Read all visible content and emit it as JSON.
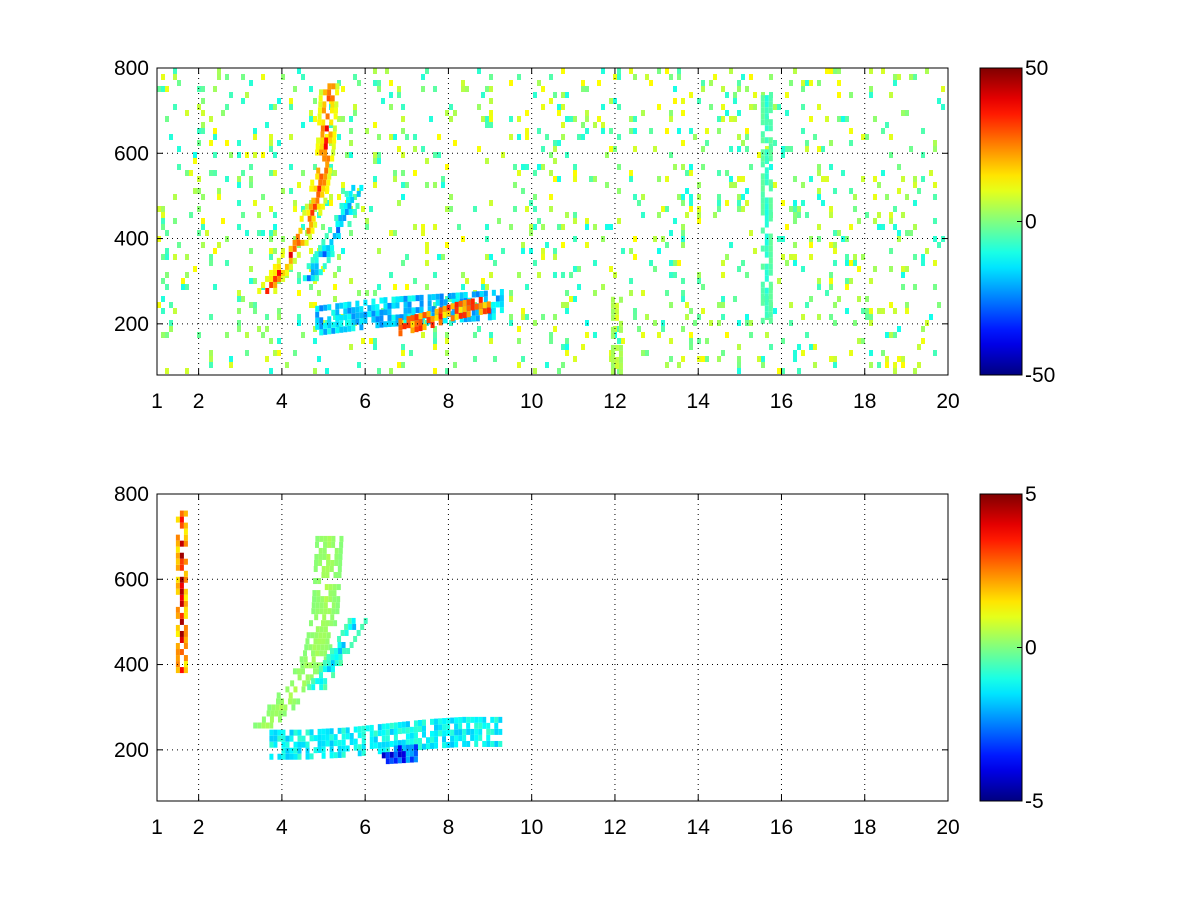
{
  "chart_data": [
    {
      "type": "heatmap",
      "title": "",
      "xlabel": "",
      "ylabel": "",
      "xlim": [
        1,
        20
      ],
      "ylim": [
        80,
        800
      ],
      "x_ticks": [
        1,
        2,
        4,
        6,
        8,
        10,
        12,
        14,
        16,
        18,
        20
      ],
      "y_ticks": [
        200,
        400,
        600,
        800
      ],
      "grid": true,
      "colormap": "jet",
      "colorbar": {
        "min": -50,
        "max": 50,
        "ticks": [
          50,
          0,
          -50
        ]
      },
      "features": [
        {
          "name": "rising ridge positive",
          "x": [
            3.6,
            4.0,
            4.4,
            4.8,
            5.0,
            5.1
          ],
          "y": [
            270,
            330,
            390,
            480,
            600,
            760
          ],
          "value": 40,
          "width_x": 0.22
        },
        {
          "name": "rising ridge negative",
          "x": [
            4.6,
            5.0,
            5.4,
            5.8
          ],
          "y": [
            300,
            360,
            430,
            520
          ],
          "value": -30,
          "width_x": 0.18
        },
        {
          "name": "horizontal band",
          "x": [
            4.8,
            5.6,
            6.4,
            7.2,
            8.0,
            8.8,
            9.3
          ],
          "y": [
            200,
            210,
            220,
            225,
            230,
            235,
            240
          ],
          "value": -25,
          "width_y": 35
        },
        {
          "name": "horizontal band positive",
          "x": [
            6.8,
            7.6,
            8.2,
            9.0
          ],
          "y": [
            185,
            205,
            225,
            240
          ],
          "value": 35,
          "width_y": 20
        },
        {
          "name": "vertical stripe 12",
          "x": [
            12.0,
            12.0
          ],
          "y": [
            80,
            260
          ],
          "value": 10,
          "width_x": 0.08
        },
        {
          "name": "vertical stripe 15.6",
          "x": [
            15.6,
            15.6
          ],
          "y": [
            200,
            740
          ],
          "value": -10,
          "width_x": 0.1
        }
      ],
      "noise": {
        "density": 0.32,
        "amplitude": 12
      }
    },
    {
      "type": "heatmap",
      "title": "",
      "xlabel": "",
      "ylabel": "",
      "xlim": [
        1,
        20
      ],
      "ylim": [
        80,
        800
      ],
      "x_ticks": [
        1,
        2,
        4,
        6,
        8,
        10,
        12,
        14,
        16,
        18,
        20
      ],
      "y_ticks": [
        200,
        400,
        600,
        800
      ],
      "grid": true,
      "colormap": "jet",
      "colorbar": {
        "min": -5,
        "max": 5,
        "ticks": [
          5,
          0,
          -5
        ]
      },
      "features": [
        {
          "name": "rising ridge",
          "x": [
            3.6,
            4.0,
            4.4,
            4.8,
            5.0,
            5.1
          ],
          "y": [
            250,
            300,
            350,
            420,
            520,
            700
          ],
          "value": 0.5,
          "width_x": 0.3
        },
        {
          "name": "rising ridge negative",
          "x": [
            4.8,
            5.2,
            5.5,
            5.8
          ],
          "y": [
            340,
            400,
            450,
            500
          ],
          "value": -2.0,
          "width_x": 0.2
        },
        {
          "name": "horizontal band",
          "x": [
            3.7,
            4.5,
            5.5,
            6.5,
            7.5,
            8.3,
            9.2
          ],
          "y": [
            205,
            205,
            210,
            220,
            230,
            235,
            235
          ],
          "value": -1.8,
          "width_y": 25
        },
        {
          "name": "dark blue patch",
          "x": [
            6.4,
            7.2
          ],
          "y": [
            180,
            185
          ],
          "value": -4.5,
          "width_y": 15
        },
        {
          "name": "left stripe",
          "x": [
            1.55,
            1.55
          ],
          "y": [
            380,
            750
          ],
          "value": 5,
          "width_x": 0.04
        }
      ],
      "noise": {
        "density": 0.0,
        "amplitude": 0
      }
    }
  ]
}
